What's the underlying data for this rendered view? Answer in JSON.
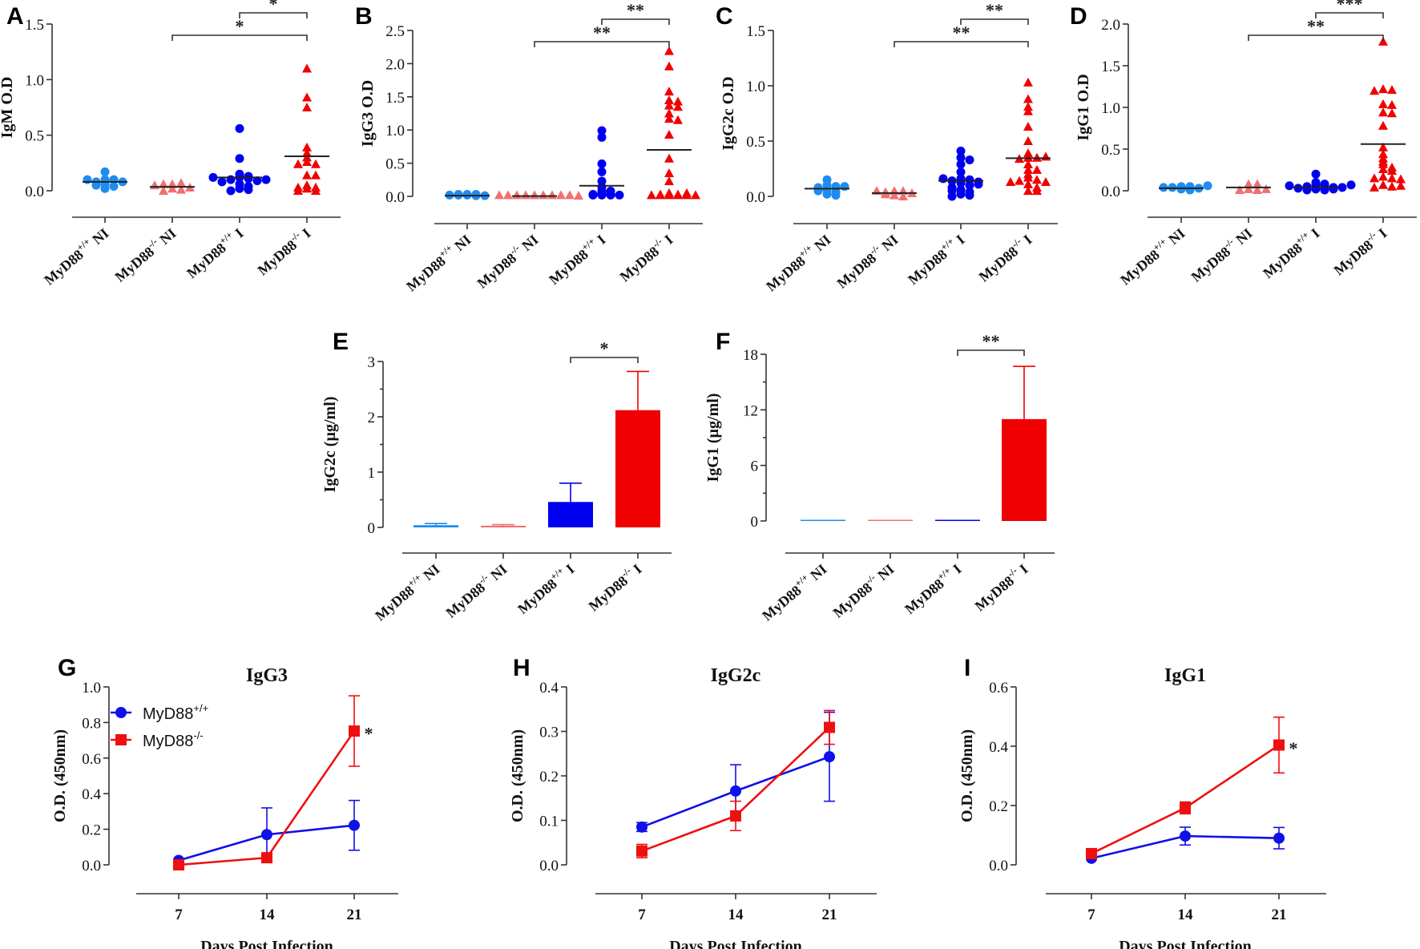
{
  "figure": {
    "groups": [
      "MyD88+/+ NI",
      "MyD88-/- NI",
      "MyD88+/+ I",
      "MyD88-/- I"
    ],
    "group_labels": [
      {
        "base": "MyD88",
        "sup": "+/+",
        "suffix": " NI"
      },
      {
        "base": "MyD88",
        "sup": "-/-",
        "suffix": " NI"
      },
      {
        "base": "MyD88",
        "sup": "+/+",
        "suffix": " I"
      },
      {
        "base": "MyD88",
        "sup": "-/-",
        "suffix": " I"
      }
    ],
    "colors": {
      "wt_ni": "#1e8cf0",
      "ko_ni": "#f07070",
      "wt_i": "#0000f0",
      "ko_i": "#f00000",
      "wt_line": "#1010e8",
      "ko_line": "#ee1010",
      "mean_line": "#222222"
    }
  },
  "chart_data": [
    {
      "id": "A",
      "type": "scatter",
      "ylabel": "IgM O.D",
      "ylim": [
        0,
        1.5
      ],
      "yticks": [
        "0.0",
        "0.5",
        "1.0",
        "1.5"
      ],
      "ytick_values": [
        0,
        0.5,
        1.0,
        1.5
      ],
      "means": [
        0.08,
        0.035,
        0.12,
        0.31
      ],
      "points": [
        [
          0.17,
          0.1,
          0.1,
          0.08,
          0.08,
          0.06,
          0.04,
          0.02,
          0.05,
          0.1
        ],
        [
          0.06,
          0.07,
          0.06,
          0.03,
          0.02,
          0.01,
          0.0,
          0.05
        ],
        [
          0.56,
          0.29,
          0.15,
          0.13,
          0.12,
          0.11,
          0.1,
          0.09,
          0.08,
          0.06,
          0.04,
          0.02,
          0.01,
          0.0,
          0.1,
          0.12
        ],
        [
          1.1,
          0.84,
          0.75,
          0.39,
          0.34,
          0.3,
          0.26,
          0.24,
          0.24,
          0.14,
          0.14,
          0.05,
          0.03,
          0.02,
          0.0,
          0.0,
          0.03
        ]
      ],
      "significance": [
        {
          "from": 1,
          "to": 3,
          "label": "*",
          "level": 1
        },
        {
          "from": 2,
          "to": 3,
          "label": "*",
          "level": 2
        }
      ]
    },
    {
      "id": "B",
      "type": "scatter",
      "ylabel": "IgG3 O.D",
      "ylim": [
        0,
        2.5
      ],
      "yticks": [
        "0.0",
        "0.5",
        "1.0",
        "1.5",
        "2.0",
        "2.5"
      ],
      "ytick_values": [
        0,
        0.5,
        1.0,
        1.5,
        2.0,
        2.5
      ],
      "means": [
        0.01,
        0.005,
        0.16,
        0.7
      ],
      "points": [
        [
          0.02,
          0.03,
          0.01,
          0.02,
          0.03,
          0.01,
          0.02,
          0.03
        ],
        [
          0.02,
          0.02,
          0.02,
          0.02,
          0.02,
          0.02,
          0.02,
          0.02,
          0.02,
          0.01
        ],
        [
          0.99,
          0.89,
          0.49,
          0.37,
          0.23,
          0.14,
          0.08,
          0.05,
          0.03,
          0.02,
          0.02,
          0.02,
          0.02,
          0.03,
          0.08
        ],
        [
          2.19,
          1.96,
          1.58,
          1.45,
          1.43,
          1.37,
          1.35,
          1.25,
          1.17,
          1.15,
          0.93,
          0.57,
          0.35,
          0.23,
          0.05,
          0.03,
          0.02,
          0.02,
          0.02,
          0.02,
          0.02,
          0.02,
          0.03,
          0.05
        ]
      ],
      "significance": [
        {
          "from": 1,
          "to": 3,
          "label": "**",
          "level": 1
        },
        {
          "from": 2,
          "to": 3,
          "label": "**",
          "level": 2
        }
      ]
    },
    {
      "id": "C",
      "type": "scatter",
      "ylabel": "IgG2c O.D",
      "ylim": [
        0,
        1.5
      ],
      "yticks": [
        "0.0",
        "0.5",
        "1.0",
        "1.5"
      ],
      "ytick_values": [
        0,
        0.5,
        1.0,
        1.5
      ],
      "means": [
        0.07,
        0.03,
        0.14,
        0.345
      ],
      "points": [
        [
          0.15,
          0.1,
          0.09,
          0.08,
          0.06,
          0.04,
          0.02,
          0.01,
          0.05,
          0.09
        ],
        [
          0.05,
          0.05,
          0.04,
          0.03,
          0.01,
          0.0,
          0.02,
          0.05
        ],
        [
          0.41,
          0.35,
          0.33,
          0.29,
          0.22,
          0.16,
          0.15,
          0.14,
          0.13,
          0.12,
          0.1,
          0.08,
          0.06,
          0.04,
          0.02,
          0.01,
          0.0,
          0.05,
          0.11,
          0.16
        ],
        [
          1.03,
          0.88,
          0.81,
          0.77,
          0.63,
          0.5,
          0.39,
          0.35,
          0.35,
          0.34,
          0.29,
          0.24,
          0.24,
          0.2,
          0.17,
          0.15,
          0.14,
          0.13,
          0.11,
          0.08,
          0.05,
          0.05,
          0.13,
          0.36
        ]
      ],
      "significance": [
        {
          "from": 1,
          "to": 3,
          "label": "**",
          "level": 1
        },
        {
          "from": 2,
          "to": 3,
          "label": "**",
          "level": 2
        }
      ]
    },
    {
      "id": "D",
      "type": "scatter",
      "ylabel": "IgG1 O.D",
      "ylim": [
        0,
        2.0
      ],
      "yticks": [
        "0.0",
        "0.5",
        "1.0",
        "1.5",
        "2.0"
      ],
      "ytick_values": [
        0,
        0.5,
        1.0,
        1.5,
        2.0
      ],
      "means": [
        0.03,
        0.04,
        0.04,
        0.56
      ],
      "points": [
        [
          0.05,
          0.05,
          0.04,
          0.03,
          0.02,
          0.01,
          0.04,
          0.06
        ],
        [
          0.08,
          0.02,
          0.01,
          0.01,
          0.02,
          0.08
        ],
        [
          0.2,
          0.1,
          0.08,
          0.07,
          0.06,
          0.05,
          0.04,
          0.03,
          0.02,
          0.01,
          0.01,
          0.02,
          0.04,
          0.06,
          0.07
        ],
        [
          1.79,
          1.22,
          1.21,
          1.2,
          1.04,
          1.03,
          0.94,
          0.93,
          0.78,
          0.52,
          0.44,
          0.39,
          0.35,
          0.32,
          0.28,
          0.26,
          0.24,
          0.17,
          0.15,
          0.15,
          0.14,
          0.07,
          0.05,
          0.04,
          0.06
        ]
      ],
      "significance": [
        {
          "from": 1,
          "to": 3,
          "label": "**",
          "level": 1
        },
        {
          "from": 2,
          "to": 3,
          "label": "***",
          "level": 2
        }
      ]
    },
    {
      "id": "E",
      "type": "bar",
      "ylabel": "IgG2c (µg/ml)",
      "ylim": [
        0,
        3
      ],
      "yticks": [
        "0",
        "1",
        "2",
        "3"
      ],
      "ytick_values": [
        0,
        1,
        2,
        3
      ],
      "values": [
        0.04,
        0.03,
        0.46,
        2.12
      ],
      "errors": [
        0.03,
        0.02,
        0.34,
        0.7
      ],
      "significance": [
        {
          "from": 2,
          "to": 3,
          "label": "*",
          "level": 1
        }
      ]
    },
    {
      "id": "F",
      "type": "bar",
      "ylabel": "IgG1 (µg/ml)",
      "ylim": [
        0,
        18
      ],
      "yticks": [
        "0",
        "6",
        "12",
        "18"
      ],
      "ytick_values": [
        0,
        6,
        12,
        18
      ],
      "values": [
        0.03,
        0.01,
        0.04,
        11.0
      ],
      "errors": [
        0.0,
        0.0,
        0.0,
        5.7
      ],
      "significance": [
        {
          "from": 2,
          "to": 3,
          "label": "**",
          "level": 1
        }
      ]
    },
    {
      "id": "G",
      "type": "line",
      "title": "IgG3",
      "xlabel": "Days Post  Infection",
      "ylabel": "O.D.  (450nm)",
      "x": [
        7,
        14,
        21
      ],
      "xticks": [
        "7",
        "14",
        "21"
      ],
      "ylim": [
        0,
        1.0
      ],
      "yticks": [
        "0.0",
        "0.2",
        "0.4",
        "0.6",
        "0.8",
        "1.0"
      ],
      "ytick_values": [
        0,
        0.2,
        0.4,
        0.6,
        0.8,
        1.0
      ],
      "series": [
        {
          "name": "MyD88+/+",
          "base": "MyD88",
          "sup": "+/+",
          "marker": "circle",
          "values": [
            0.025,
            0.17,
            0.222
          ],
          "errors": [
            0.0,
            0.15,
            0.14
          ]
        },
        {
          "name": "MyD88-/-",
          "base": "MyD88",
          "sup": "-/-",
          "marker": "square",
          "values": [
            0.0,
            0.04,
            0.752
          ],
          "errors": [
            0.0,
            0.02,
            0.198
          ]
        }
      ],
      "annotations": [
        {
          "x": 21,
          "y": 0.75,
          "label": "*"
        }
      ],
      "legend": "top-left"
    },
    {
      "id": "H",
      "type": "line",
      "title": "IgG2c",
      "xlabel": "Days Post  Infection",
      "ylabel": "O.D.  (450nm)",
      "x": [
        7,
        14,
        21
      ],
      "xticks": [
        "7",
        "14",
        "21"
      ],
      "ylim": [
        0,
        0.4
      ],
      "yticks": [
        "0.0",
        "0.1",
        "0.2",
        "0.3",
        "0.4"
      ],
      "ytick_values": [
        0,
        0.1,
        0.2,
        0.3,
        0.4
      ],
      "series": [
        {
          "name": "MyD88+/+",
          "marker": "circle",
          "values": [
            0.085,
            0.166,
            0.243
          ],
          "errors": [
            0.01,
            0.059,
            0.1
          ]
        },
        {
          "name": "MyD88-/-",
          "marker": "square",
          "values": [
            0.031,
            0.11,
            0.309
          ],
          "errors": [
            0.015,
            0.033,
            0.038
          ]
        }
      ],
      "annotations": []
    },
    {
      "id": "I",
      "type": "line",
      "title": "IgG1",
      "xlabel": "Days Post  Infection",
      "ylabel": "O.D.  (450nm)",
      "x": [
        7,
        14,
        21
      ],
      "xticks": [
        "7",
        "14",
        "21"
      ],
      "ylim": [
        0,
        0.6
      ],
      "yticks": [
        "0.0",
        "0.2",
        "0.4",
        "0.6"
      ],
      "ytick_values": [
        0,
        0.2,
        0.4,
        0.6
      ],
      "series": [
        {
          "name": "MyD88+/+",
          "marker": "circle",
          "values": [
            0.022,
            0.097,
            0.09
          ],
          "errors": [
            0.0,
            0.03,
            0.036
          ]
        },
        {
          "name": "MyD88-/-",
          "marker": "square",
          "values": [
            0.038,
            0.192,
            0.404
          ],
          "errors": [
            0.0,
            0.02,
            0.094
          ]
        }
      ],
      "annotations": [
        {
          "x": 21,
          "y": 0.4,
          "label": "*"
        }
      ]
    }
  ]
}
